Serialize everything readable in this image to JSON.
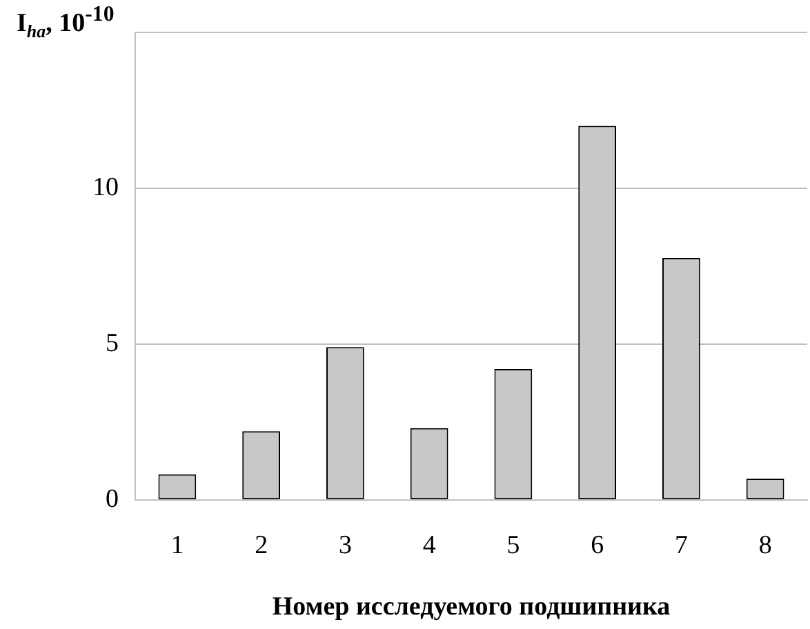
{
  "chart_data": {
    "type": "bar",
    "ylabel": "I$_{ha}$, 10$^{-10}$",
    "xlabel": "Номер исследуемого подшипника",
    "categories": [
      "1",
      "2",
      "3",
      "4",
      "5",
      "6",
      "7",
      "8"
    ],
    "values": [
      0.82,
      2.2,
      4.9,
      2.3,
      4.2,
      12.0,
      7.76,
      0.68
    ],
    "color": "#c8c8c8",
    "ylim": [
      0,
      15
    ],
    "yticks": [
      0,
      5,
      10,
      {
        "value": 15,
        "label": null
      }
    ],
    "grid": "y"
  }
}
